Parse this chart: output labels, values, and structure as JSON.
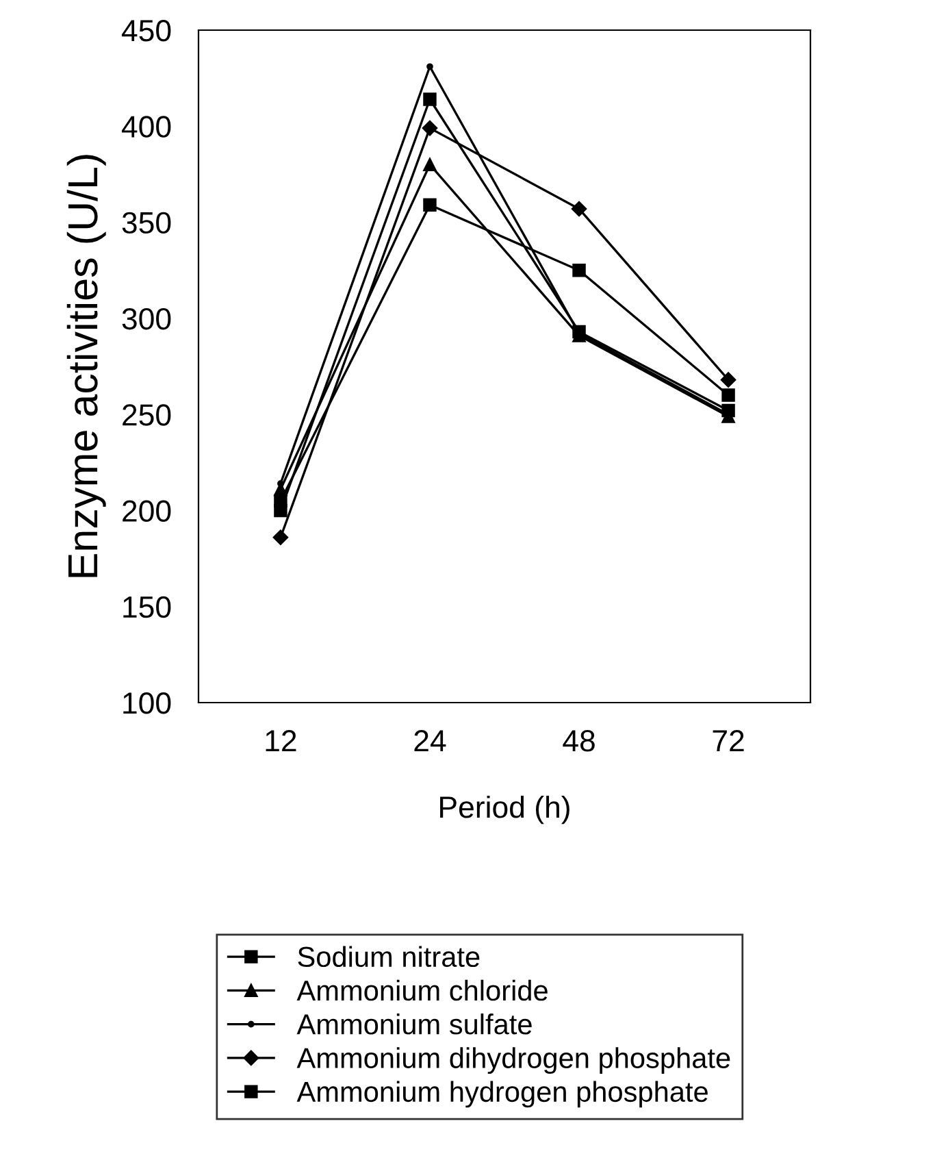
{
  "chart_data": {
    "type": "line",
    "xlabel": "Period (h)",
    "ylabel": "Enzyme activities (U/L)",
    "categories": [
      "12",
      "24",
      "48",
      "72"
    ],
    "ylim": [
      100,
      450
    ],
    "yticks": [
      100,
      150,
      200,
      250,
      300,
      350,
      400,
      450
    ],
    "grid": false,
    "legend": "bottom",
    "series": [
      {
        "name": "Sodium nitrate",
        "color": "#000000",
        "marker": "square",
        "values": [
          200,
          414,
          293,
          252
        ]
      },
      {
        "name": "Ammonium chloride",
        "color": "#000000",
        "marker": "triangle",
        "values": [
          211,
          380,
          291,
          249
        ]
      },
      {
        "name": "Ammonium sulfate",
        "color": "#000000",
        "marker": "circle",
        "values": [
          214,
          431,
          292,
          250
        ]
      },
      {
        "name": "Ammonium dihydrogen phosphate",
        "color": "#000000",
        "marker": "diamond",
        "values": [
          186,
          399,
          357,
          268
        ]
      },
      {
        "name": "Ammonium hydrogen phosphate",
        "color": "#000000",
        "marker": "square",
        "values": [
          205,
          359,
          325,
          260
        ]
      }
    ]
  }
}
